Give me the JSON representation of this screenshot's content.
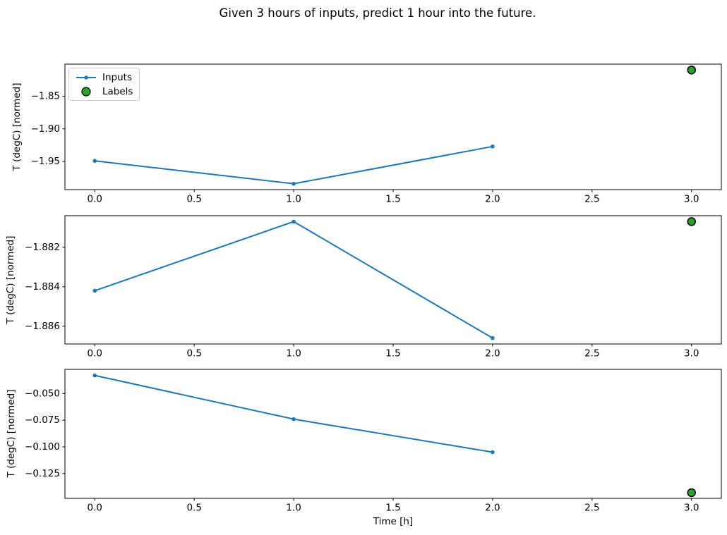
{
  "title": "Given 3 hours of inputs, predict 1 hour into the future.",
  "colors": {
    "inputs_line": "#1f77b4",
    "labels_fill": "#2ca02c",
    "labels_edge": "#000000",
    "axis": "#000000",
    "legend_border": "#cccccc",
    "background": "#ffffff"
  },
  "legend": {
    "position": "upper left",
    "items": [
      {
        "label": "Inputs",
        "marker": "line-with-dot"
      },
      {
        "label": "Labels",
        "marker": "filled-circle"
      }
    ]
  },
  "chart_data": [
    {
      "type": "line",
      "ylabel": "T (degC) [normed]",
      "xlabel": "",
      "xlim": [
        -0.15,
        3.15
      ],
      "ylim": [
        -1.993,
        -1.801
      ],
      "x_ticks": [
        0.0,
        0.5,
        1.0,
        1.5,
        2.0,
        2.5,
        3.0
      ],
      "x_tick_decimals": 1,
      "y_ticks": [
        -1.85,
        -1.9,
        -1.95
      ],
      "y_tick_decimals": 2,
      "grid": false,
      "legend_visible": true,
      "series": [
        {
          "name": "Inputs",
          "type": "line",
          "x": [
            0,
            1,
            2
          ],
          "y": [
            -1.949,
            -1.984,
            -1.927
          ]
        },
        {
          "name": "Labels",
          "type": "scatter",
          "x": [
            3
          ],
          "y": [
            -1.81
          ]
        }
      ]
    },
    {
      "type": "line",
      "ylabel": "T (degC) [normed]",
      "xlabel": "",
      "xlim": [
        -0.15,
        3.15
      ],
      "ylim": [
        -1.8869,
        -1.8804
      ],
      "x_ticks": [
        0.0,
        0.5,
        1.0,
        1.5,
        2.0,
        2.5,
        3.0
      ],
      "x_tick_decimals": 1,
      "y_ticks": [
        -1.882,
        -1.884,
        -1.886
      ],
      "y_tick_decimals": 3,
      "grid": false,
      "legend_visible": false,
      "series": [
        {
          "name": "Inputs",
          "type": "line",
          "x": [
            0,
            1,
            2
          ],
          "y": [
            -1.8842,
            -1.8807,
            -1.8866
          ]
        },
        {
          "name": "Labels",
          "type": "scatter",
          "x": [
            3
          ],
          "y": [
            -1.8807
          ]
        }
      ]
    },
    {
      "type": "line",
      "ylabel": "T (degC) [normed]",
      "xlabel": "Time [h]",
      "xlim": [
        -0.15,
        3.15
      ],
      "ylim": [
        -0.1483,
        -0.0273
      ],
      "x_ticks": [
        0.0,
        0.5,
        1.0,
        1.5,
        2.0,
        2.5,
        3.0
      ],
      "x_tick_decimals": 1,
      "y_ticks": [
        -0.05,
        -0.075,
        -0.1,
        -0.125
      ],
      "y_tick_decimals": 3,
      "grid": false,
      "legend_visible": false,
      "series": [
        {
          "name": "Inputs",
          "type": "line",
          "x": [
            0,
            1,
            2
          ],
          "y": [
            -0.033,
            -0.074,
            -0.105
          ]
        },
        {
          "name": "Labels",
          "type": "scatter",
          "x": [
            3
          ],
          "y": [
            -0.143
          ]
        }
      ]
    }
  ]
}
